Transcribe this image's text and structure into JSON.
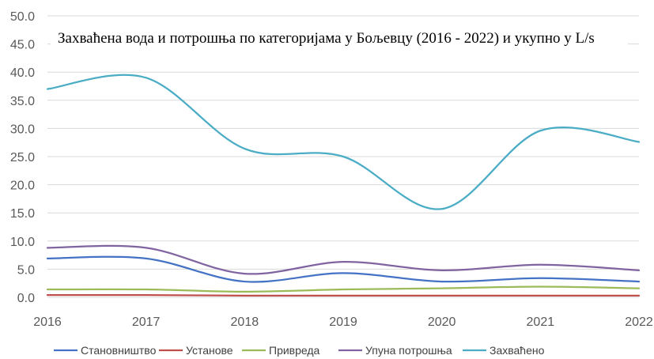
{
  "chart_data": {
    "type": "line",
    "title": "Захваћена вода и потрошња по категоријама у Бољевцу (2016 - 2022) и укупно у L/s",
    "xlabel": "",
    "ylabel": "",
    "x": [
      2016,
      2017,
      2018,
      2019,
      2020,
      2021,
      2022
    ],
    "x_tick_labels": [
      "2016",
      "2017",
      "2018",
      "2019",
      "2020",
      "2021",
      "2022"
    ],
    "ylim": [
      0,
      50
    ],
    "y_ticks": [
      0,
      5,
      10,
      15,
      20,
      25,
      30,
      35,
      40,
      45,
      50
    ],
    "y_tick_labels": [
      "0.0",
      "5.0",
      "10.0",
      "15.0",
      "20.0",
      "25.0",
      "30.0",
      "35.0",
      "40.0",
      "45.0",
      "50.0"
    ],
    "grid": true,
    "legend_position": "bottom",
    "smooth": true,
    "series": [
      {
        "name": "Становништво",
        "color": "#4472C4",
        "values": [
          6.9,
          6.9,
          2.8,
          4.3,
          2.8,
          3.4,
          2.8
        ]
      },
      {
        "name": "Установе",
        "color": "#C0504D",
        "values": [
          0.4,
          0.4,
          0.3,
          0.3,
          0.3,
          0.3,
          0.3
        ]
      },
      {
        "name": "Привреда",
        "color": "#9BBB59",
        "values": [
          1.4,
          1.4,
          1.0,
          1.4,
          1.6,
          1.9,
          1.6
        ]
      },
      {
        "name": "Упуна потрошња",
        "color": "#8064A2",
        "values": [
          8.8,
          8.8,
          4.2,
          6.3,
          4.8,
          5.8,
          4.8
        ]
      },
      {
        "name": "Захваћено",
        "color": "#4BACC6",
        "values": [
          37.0,
          39.0,
          26.4,
          25.0,
          15.7,
          29.6,
          27.6
        ]
      }
    ]
  }
}
